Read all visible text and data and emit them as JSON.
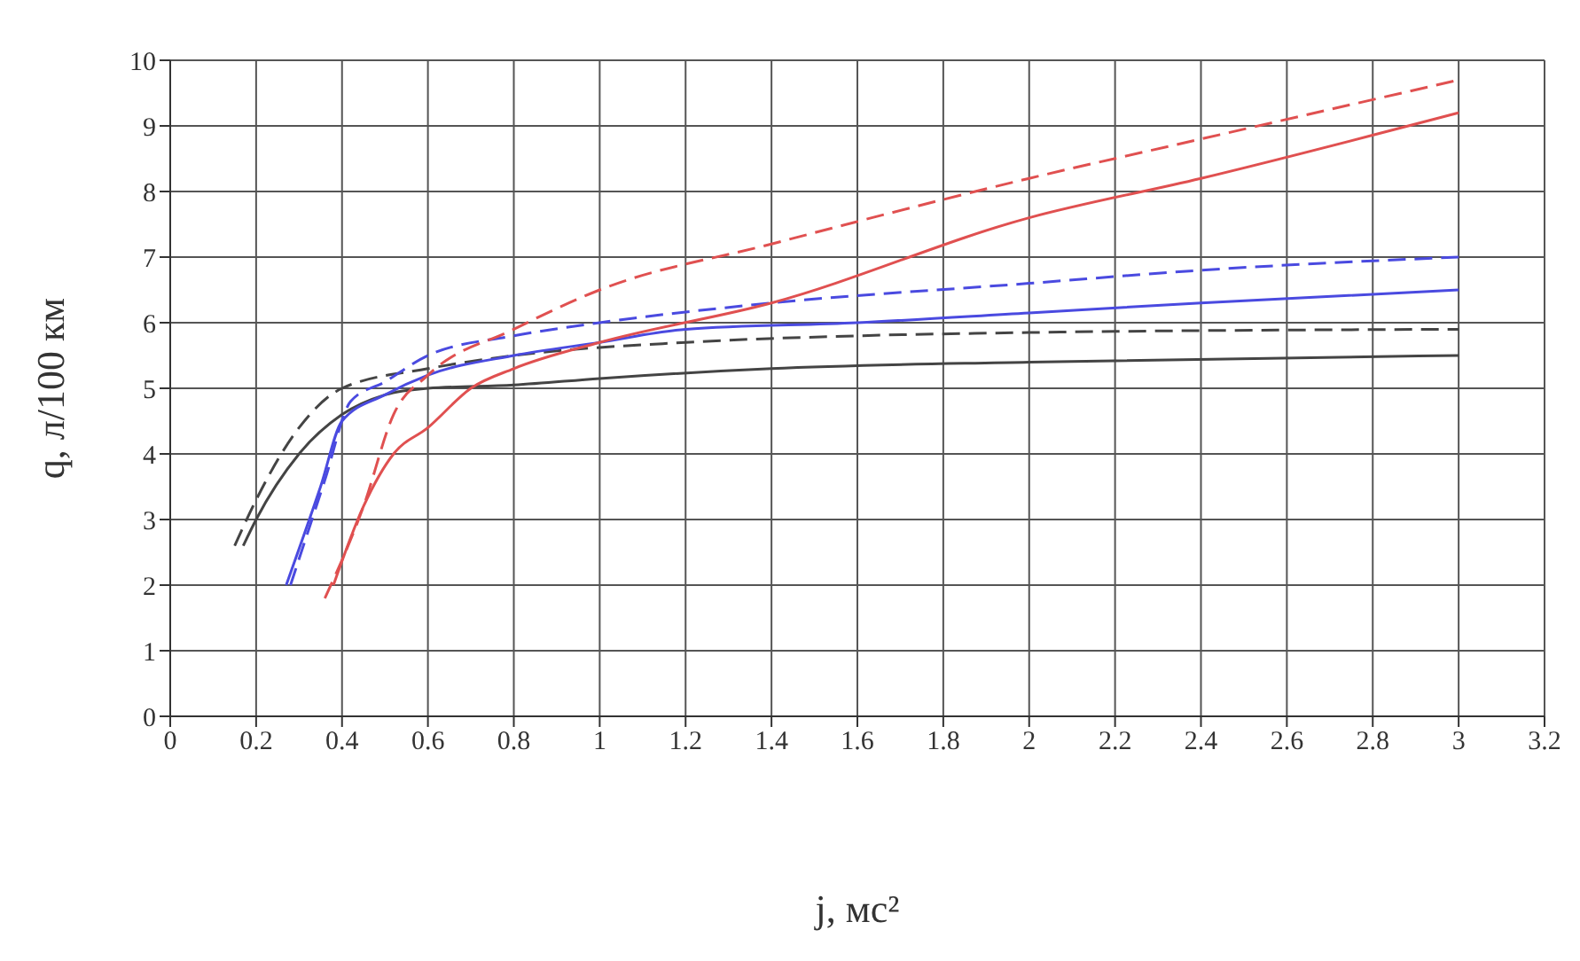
{
  "chart_data": {
    "type": "line",
    "xlabel": "j, мс²",
    "ylabel": "q, л/100 км",
    "xlim": [
      0,
      3.2
    ],
    "xticks": [
      0,
      0.2,
      0.4,
      0.6,
      0.8,
      1,
      1.2,
      1.4,
      1.6,
      1.8,
      2,
      2.2,
      2.4,
      2.6,
      2.8,
      3,
      3.2
    ],
    "ylim": [
      0,
      10
    ],
    "yticks": [
      0,
      1,
      2,
      3,
      4,
      5,
      6,
      7,
      8,
      9,
      10
    ],
    "grid": true,
    "marker": "none",
    "series": [
      {
        "color": "#444444",
        "line_style": "solid",
        "x": [
          0.17,
          0.2,
          0.3,
          0.4,
          0.5,
          0.6,
          0.8,
          1,
          1.4,
          2,
          3
        ],
        "values": [
          2.6,
          3.0,
          4.0,
          4.6,
          4.9,
          5.0,
          5.05,
          5.15,
          5.3,
          5.4,
          5.5
        ]
      },
      {
        "color": "#444444",
        "line_style": "dashed",
        "x": [
          0.15,
          0.2,
          0.3,
          0.4,
          0.6,
          0.8,
          1.2,
          1.6,
          2,
          3
        ],
        "values": [
          2.6,
          3.3,
          4.4,
          5.0,
          5.3,
          5.5,
          5.7,
          5.8,
          5.85,
          5.9
        ]
      },
      {
        "color": "#4a4ae0",
        "line_style": "solid",
        "x": [
          0.27,
          0.35,
          0.4,
          0.5,
          0.6,
          0.8,
          1,
          1.2,
          1.6,
          2,
          2.4,
          3
        ],
        "values": [
          2.0,
          3.5,
          4.5,
          4.9,
          5.2,
          5.5,
          5.7,
          5.9,
          6.0,
          6.15,
          6.3,
          6.5
        ]
      },
      {
        "color": "#4a4ae0",
        "line_style": "dashed",
        "x": [
          0.28,
          0.36,
          0.42,
          0.5,
          0.6,
          0.8,
          1,
          1.4,
          2,
          2.4,
          3
        ],
        "values": [
          2.0,
          3.6,
          4.8,
          5.1,
          5.5,
          5.8,
          6.0,
          6.3,
          6.6,
          6.8,
          7.0
        ]
      },
      {
        "color": "#e05050",
        "line_style": "solid",
        "x": [
          0.38,
          0.45,
          0.52,
          0.6,
          0.7,
          0.8,
          1,
          1.4,
          2,
          2.4,
          3
        ],
        "values": [
          2.0,
          3.2,
          4.0,
          4.4,
          5.0,
          5.3,
          5.7,
          6.3,
          7.6,
          8.2,
          9.2
        ]
      },
      {
        "color": "#e05050",
        "line_style": "dashed",
        "x": [
          0.36,
          0.45,
          0.52,
          0.6,
          0.8,
          1,
          1.4,
          2,
          2.4,
          3
        ],
        "values": [
          1.8,
          3.2,
          4.6,
          5.2,
          5.9,
          6.5,
          7.2,
          8.2,
          8.8,
          9.7
        ]
      }
    ]
  }
}
